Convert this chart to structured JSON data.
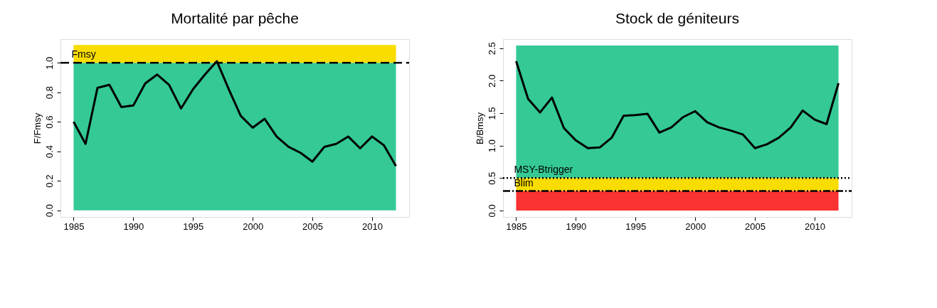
{
  "chart_data": [
    {
      "type": "line",
      "title": "Mortalité par pêche",
      "ylabel": "F/Fmsy",
      "x": [
        1985,
        1986,
        1987,
        1988,
        1989,
        1990,
        1991,
        1992,
        1993,
        1994,
        1995,
        1996,
        1997,
        1998,
        1999,
        2000,
        2001,
        2002,
        2003,
        2004,
        2005,
        2006,
        2007,
        2008,
        2009,
        2010,
        2011,
        2012
      ],
      "series": [
        {
          "color": "#000000",
          "values": [
            0.6,
            0.45,
            0.83,
            0.85,
            0.7,
            0.71,
            0.86,
            0.92,
            0.85,
            0.69,
            0.82,
            0.92,
            1.01,
            0.82,
            0.64,
            0.56,
            0.62,
            0.5,
            0.43,
            0.39,
            0.33,
            0.43,
            0.45,
            0.5,
            0.42,
            0.5,
            0.44,
            0.3
          ]
        }
      ],
      "xlim": [
        1983.9,
        2013.1
      ],
      "xticks": [
        1985,
        1990,
        1995,
        2000,
        2005,
        2010
      ],
      "ylim": [
        -0.045,
        1.16
      ],
      "yticks": [
        {
          "value": 0,
          "label": "0.0"
        },
        0.2,
        0.4,
        0.6,
        0.8,
        {
          "value": 1,
          "label": "1.0"
        }
      ],
      "bands": [
        {
          "axis": "y",
          "from": 0,
          "to": 1.0,
          "color": "#34c995"
        },
        {
          "axis": "y",
          "from": 1.0,
          "to": 1.12,
          "color": "#f9dc00"
        }
      ],
      "ref_lines": [
        {
          "axis": "y",
          "value": 1.0,
          "label": "Fmsy",
          "line_style": "dashed"
        }
      ],
      "grid": false
    },
    {
      "type": "line",
      "title": "Stock de géniteurs",
      "ylabel": "B/Bmsy",
      "x": [
        1985,
        1986,
        1987,
        1988,
        1989,
        1990,
        1991,
        1992,
        1993,
        1994,
        1995,
        1996,
        1997,
        1998,
        1999,
        2000,
        2001,
        2002,
        2003,
        2004,
        2005,
        2006,
        2007,
        2008,
        2009,
        2010,
        2011,
        2012
      ],
      "series": [
        {
          "color": "#000000",
          "values": [
            2.3,
            1.72,
            1.51,
            1.74,
            1.27,
            1.08,
            0.96,
            0.97,
            1.12,
            1.46,
            1.47,
            1.49,
            1.2,
            1.28,
            1.44,
            1.53,
            1.36,
            1.28,
            1.23,
            1.17,
            0.96,
            1.02,
            1.12,
            1.28,
            1.54,
            1.4,
            1.33,
            1.96
          ]
        }
      ],
      "xlim": [
        1983.9,
        2013.1
      ],
      "xticks": [
        1985,
        1990,
        1995,
        2000,
        2005,
        2010
      ],
      "ylim": [
        -0.1,
        2.64
      ],
      "yticks": [
        {
          "value": 0,
          "label": "0.0"
        },
        0.5,
        {
          "value": 1,
          "label": "1.0"
        },
        1.5,
        {
          "value": 2,
          "label": "2.0"
        },
        2.5
      ],
      "bands": [
        {
          "axis": "y",
          "from": 0.5,
          "to": 2.54,
          "color": "#34c995"
        },
        {
          "axis": "y",
          "from": 0.3,
          "to": 0.5,
          "color": "#f9dc00"
        },
        {
          "axis": "y",
          "from": 0,
          "to": 0.3,
          "color": "#fa3232"
        }
      ],
      "ref_lines": [
        {
          "axis": "y",
          "value": 0.5,
          "label": "MSY-Btrigger",
          "line_style": "dotted"
        },
        {
          "axis": "y",
          "value": 0.3,
          "label": "Blim",
          "line_style": "dashdot"
        }
      ],
      "grid": false
    }
  ]
}
